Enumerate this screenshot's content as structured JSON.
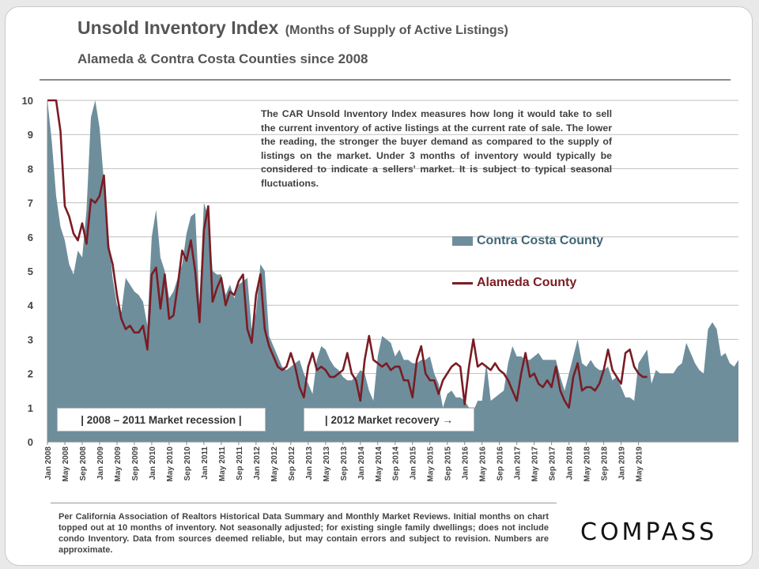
{
  "header": {
    "title": "Unsold Inventory Index",
    "title_suffix": "(Months of Supply of Active Listings)",
    "subtitle": "Alameda & Contra Costa Counties since 2008"
  },
  "explanation": "The CAR Unsold Inventory Index measures how long it would take to sell the current inventory of active listings at the current rate of sale. The lower the reading, the stronger the buyer demand as compared to the supply of listings on the market. Under 3 months of inventory would typically be considered to indicate a sellers' market. It is subject to typical seasonal fluctuations.",
  "annotations": {
    "recession": "|   2008 – 2011 Market recession   |",
    "recovery": "| 2012 Market recovery →"
  },
  "footnote": "Per California Association of Realtors Historical Data Summary and Monthly Market Reviews. Initial months on chart topped out at 10 months of inventory. Not seasonally adjusted; for existing single family dwellings; does not include condo Inventory. Data from sources deemed reliable, but may contain errors and subject to revision. Numbers are approximate.",
  "logo": "COMPASS",
  "colors": {
    "contra_costa": "#6e8e9c",
    "alameda": "#7a1c24",
    "grid": "#bfbfbf",
    "text": "#555555"
  },
  "chart_data": {
    "type": "area",
    "title": "Unsold Inventory Index",
    "xlabel": "",
    "ylabel": "",
    "ylim": [
      0,
      10
    ],
    "yticks": [
      0,
      1,
      2,
      3,
      4,
      5,
      6,
      7,
      8,
      9,
      10
    ],
    "grid": true,
    "legend_position": "right-center",
    "x_start": "Jan 2008",
    "x_ticks": [
      "Jan 2008",
      "May 2008",
      "Sep 2008",
      "Jan 2009",
      "May 2009",
      "Sep 2009",
      "Jan 2010",
      "May 2010",
      "Sep 2010",
      "Jan 2011",
      "May 2011",
      "Sep 2011",
      "Jan 2012",
      "May 2012",
      "Sep 2012",
      "Jan 2013",
      "May 2013",
      "Sep 2013",
      "Jan 2014",
      "May 2014",
      "Sep 2014",
      "Jan 2015",
      "May 2015",
      "Sep 2015",
      "Jan 2016",
      "May 2016",
      "Sep 2016",
      "Jan 2017",
      "May 2017",
      "Sep 2017",
      "Jan 2018",
      "May 2018",
      "Sep 2018",
      "Jan 2019",
      "May 2019"
    ],
    "series": [
      {
        "name": "Contra Costa County",
        "style": "area",
        "values": [
          10,
          8.8,
          7.2,
          6.3,
          5.9,
          5.2,
          4.9,
          5.6,
          5.4,
          6.8,
          9.5,
          10,
          9.2,
          7.6,
          6.1,
          4.8,
          4.0,
          3.8,
          4.8,
          4.6,
          4.4,
          4.3,
          4.1,
          3.4,
          6.0,
          6.8,
          5.4,
          5.0,
          4.2,
          4.4,
          4.8,
          5.2,
          6.1,
          6.6,
          6.7,
          4.0,
          7.0,
          6.6,
          5.0,
          4.9,
          4.9,
          4.3,
          4.6,
          4.2,
          4.6,
          4.7,
          4.8,
          3.3,
          3.8,
          5.2,
          5.0,
          3.1,
          2.8,
          2.5,
          2.2,
          2.1,
          2.2,
          2.3,
          2.4,
          2.0,
          1.7,
          1.4,
          2.4,
          2.8,
          2.7,
          2.4,
          2.2,
          2.1,
          1.9,
          1.8,
          1.8,
          1.9,
          2.1,
          2.0,
          1.5,
          1.2,
          2.5,
          3.1,
          3.0,
          2.9,
          2.5,
          2.7,
          2.4,
          2.4,
          2.3,
          2.3,
          2.4,
          2.4,
          2.5,
          2.0,
          1.7,
          1.0,
          1.4,
          1.5,
          1.3,
          1.3,
          1.2,
          1.0,
          0.9,
          1.2,
          1.2,
          2.3,
          1.2,
          1.3,
          1.4,
          1.5,
          2.3,
          2.8,
          2.5,
          2.5,
          2.4,
          2.4,
          2.5,
          2.6,
          2.4,
          2.4,
          2.4,
          2.4,
          1.9,
          1.5,
          2.0,
          2.5,
          3.0,
          2.3,
          2.2,
          2.4,
          2.2,
          2.1,
          2.1,
          2.2,
          1.8,
          1.9,
          1.6,
          1.3,
          1.3,
          1.2,
          2.3,
          2.5,
          2.7,
          1.7,
          2.1,
          2.0,
          2.0,
          2.0,
          2.0,
          2.2,
          2.3,
          2.9,
          2.6,
          2.3,
          2.1,
          2.0,
          3.3,
          3.5,
          3.3,
          2.5,
          2.6,
          2.3,
          2.2,
          2.4
        ]
      },
      {
        "name": "Alameda County",
        "style": "line",
        "values": [
          10,
          10,
          10,
          9.1,
          6.9,
          6.6,
          6.1,
          5.9,
          6.4,
          5.8,
          7.1,
          7.0,
          7.2,
          7.8,
          5.7,
          5.2,
          4.3,
          3.6,
          3.3,
          3.4,
          3.2,
          3.2,
          3.4,
          2.7,
          4.9,
          5.1,
          3.9,
          4.9,
          3.6,
          3.7,
          4.6,
          5.6,
          5.3,
          5.9,
          5.0,
          3.5,
          6.2,
          6.9,
          4.1,
          4.5,
          4.8,
          4.0,
          4.4,
          4.3,
          4.7,
          4.9,
          3.3,
          2.9,
          4.3,
          4.9,
          3.3,
          2.8,
          2.5,
          2.2,
          2.1,
          2.2,
          2.6,
          2.2,
          1.6,
          1.3,
          2.2,
          2.6,
          2.1,
          2.2,
          2.1,
          1.9,
          1.9,
          2.0,
          2.1,
          2.6,
          2.0,
          1.8,
          1.2,
          2.4,
          3.1,
          2.4,
          2.3,
          2.2,
          2.3,
          2.1,
          2.2,
          2.2,
          1.8,
          1.8,
          1.3,
          2.4,
          2.8,
          2.0,
          1.8,
          1.8,
          1.4,
          1.8,
          2.0,
          2.2,
          2.3,
          2.2,
          1.1,
          2.2,
          3.0,
          2.2,
          2.3,
          2.2,
          2.1,
          2.3,
          2.1,
          2.0,
          1.8,
          1.5,
          1.2,
          2.0,
          2.6,
          1.9,
          2.0,
          1.7,
          1.6,
          1.8,
          1.6,
          2.2,
          1.5,
          1.2,
          1.0,
          1.9,
          2.3,
          1.5,
          1.6,
          1.6,
          1.5,
          1.7,
          2.1,
          2.7,
          2.1,
          1.9,
          1.7,
          2.6,
          2.7,
          2.2,
          2.0,
          1.9,
          1.9
        ]
      }
    ]
  }
}
